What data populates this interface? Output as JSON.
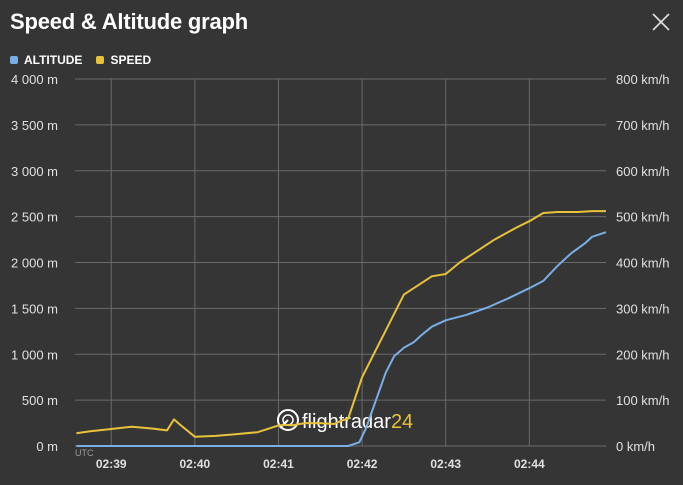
{
  "header": {
    "title": "Speed & Altitude graph",
    "close_icon": "close-icon"
  },
  "colors": {
    "background": "#353535",
    "grid": "#6a6a6a",
    "altitude": "#7aaee6",
    "speed": "#e8c23a"
  },
  "watermark": {
    "text_main": "flightradar",
    "text_num": "24"
  },
  "chart_data": {
    "type": "line",
    "title": "Speed & Altitude graph",
    "legend_position": "top-left",
    "grid": true,
    "x_unit_label": "UTC",
    "x_range": [
      "02:38:34",
      "02:44:55"
    ],
    "x_ticks": [
      "02:39",
      "02:40",
      "02:41",
      "02:42",
      "02:43",
      "02:44"
    ],
    "y_left": {
      "ylim": [
        0,
        4000
      ],
      "ticks": [
        "0 m",
        "500 m",
        "1 000 m",
        "1 500 m",
        "2 000 m",
        "2 500 m",
        "3 000 m",
        "3 500 m",
        "4 000 m"
      ]
    },
    "y_right": {
      "ylim": [
        0,
        800
      ],
      "ticks": [
        "0 km/h",
        "100 km/h",
        "200 km/h",
        "300 km/h",
        "400 km/h",
        "500 km/h",
        "600 km/h",
        "700 km/h",
        "800 km/h"
      ]
    },
    "series": [
      {
        "name": "ALTITUDE",
        "axis": "left",
        "x": [
          "02:38:35",
          "02:39:00",
          "02:40:00",
          "02:41:00",
          "02:41:50",
          "02:41:58",
          "02:42:03",
          "02:42:10",
          "02:42:17",
          "02:42:23",
          "02:42:30",
          "02:42:37",
          "02:42:42",
          "02:42:50",
          "02:43:00",
          "02:43:15",
          "02:43:30",
          "02:43:45",
          "02:44:00",
          "02:44:10",
          "02:44:20",
          "02:44:30",
          "02:44:40",
          "02:44:45",
          "02:44:55"
        ],
        "values": [
          0,
          0,
          0,
          0,
          0,
          40,
          200,
          500,
          800,
          980,
          1070,
          1130,
          1200,
          1300,
          1370,
          1430,
          1510,
          1610,
          1720,
          1800,
          1960,
          2100,
          2210,
          2280,
          2330
        ]
      },
      {
        "name": "SPEED",
        "axis": "right",
        "x": [
          "02:38:35",
          "02:38:45",
          "02:39:00",
          "02:39:15",
          "02:39:30",
          "02:39:40",
          "02:39:45",
          "02:39:50",
          "02:40:00",
          "02:40:15",
          "02:40:30",
          "02:40:45",
          "02:41:00",
          "02:41:05",
          "02:41:10",
          "02:41:15",
          "02:41:20",
          "02:41:30",
          "02:41:40",
          "02:41:45",
          "02:41:50",
          "02:42:00",
          "02:42:15",
          "02:42:30",
          "02:42:40",
          "02:42:50",
          "02:43:00",
          "02:43:10",
          "02:43:20",
          "02:43:35",
          "02:43:50",
          "02:44:00",
          "02:44:10",
          "02:44:20",
          "02:44:35",
          "02:44:45",
          "02:44:55"
        ],
        "values": [
          28,
          32,
          37,
          42,
          38,
          34,
          58,
          45,
          20,
          22,
          26,
          30,
          45,
          46,
          45,
          48,
          50,
          50,
          48,
          55,
          60,
          150,
          240,
          330,
          350,
          370,
          375,
          400,
          420,
          450,
          475,
          490,
          508,
          510,
          510,
          512,
          512
        ]
      }
    ]
  }
}
